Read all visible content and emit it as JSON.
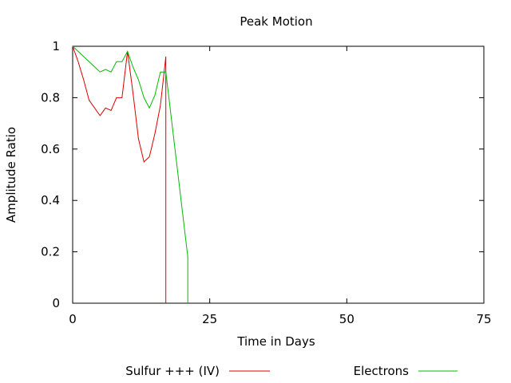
{
  "chart_data": {
    "type": "line",
    "title": "Peak Motion",
    "xlabel": "Time in Days",
    "ylabel": "Amplitude Ratio",
    "xlim": [
      0,
      75
    ],
    "ylim": [
      0,
      1
    ],
    "xticks": [
      0,
      25,
      50,
      75
    ],
    "yticks": [
      0,
      0.2,
      0.4,
      0.6,
      0.8,
      1
    ],
    "grid": false,
    "legend_position": "bottom",
    "series": [
      {
        "name": "Sulfur +++ (IV)",
        "color": "#dd0000",
        "x": [
          0,
          1,
          2,
          3,
          4,
          5,
          6,
          7,
          8,
          9,
          10,
          11,
          12,
          13,
          14,
          15,
          16,
          17,
          17
        ],
        "y": [
          1.0,
          0.94,
          0.87,
          0.79,
          0.76,
          0.73,
          0.76,
          0.75,
          0.8,
          0.8,
          0.98,
          0.82,
          0.64,
          0.55,
          0.57,
          0.66,
          0.77,
          0.96,
          0.0
        ]
      },
      {
        "name": "Electrons",
        "color": "#00bb00",
        "x": [
          0,
          1,
          2,
          3,
          4,
          5,
          6,
          7,
          8,
          9,
          10,
          11,
          12,
          13,
          14,
          15,
          16,
          17,
          21,
          21
        ],
        "y": [
          1.0,
          0.98,
          0.96,
          0.94,
          0.92,
          0.9,
          0.91,
          0.9,
          0.94,
          0.94,
          0.98,
          0.92,
          0.87,
          0.8,
          0.76,
          0.81,
          0.9,
          0.9,
          0.18,
          0.0
        ]
      }
    ]
  }
}
